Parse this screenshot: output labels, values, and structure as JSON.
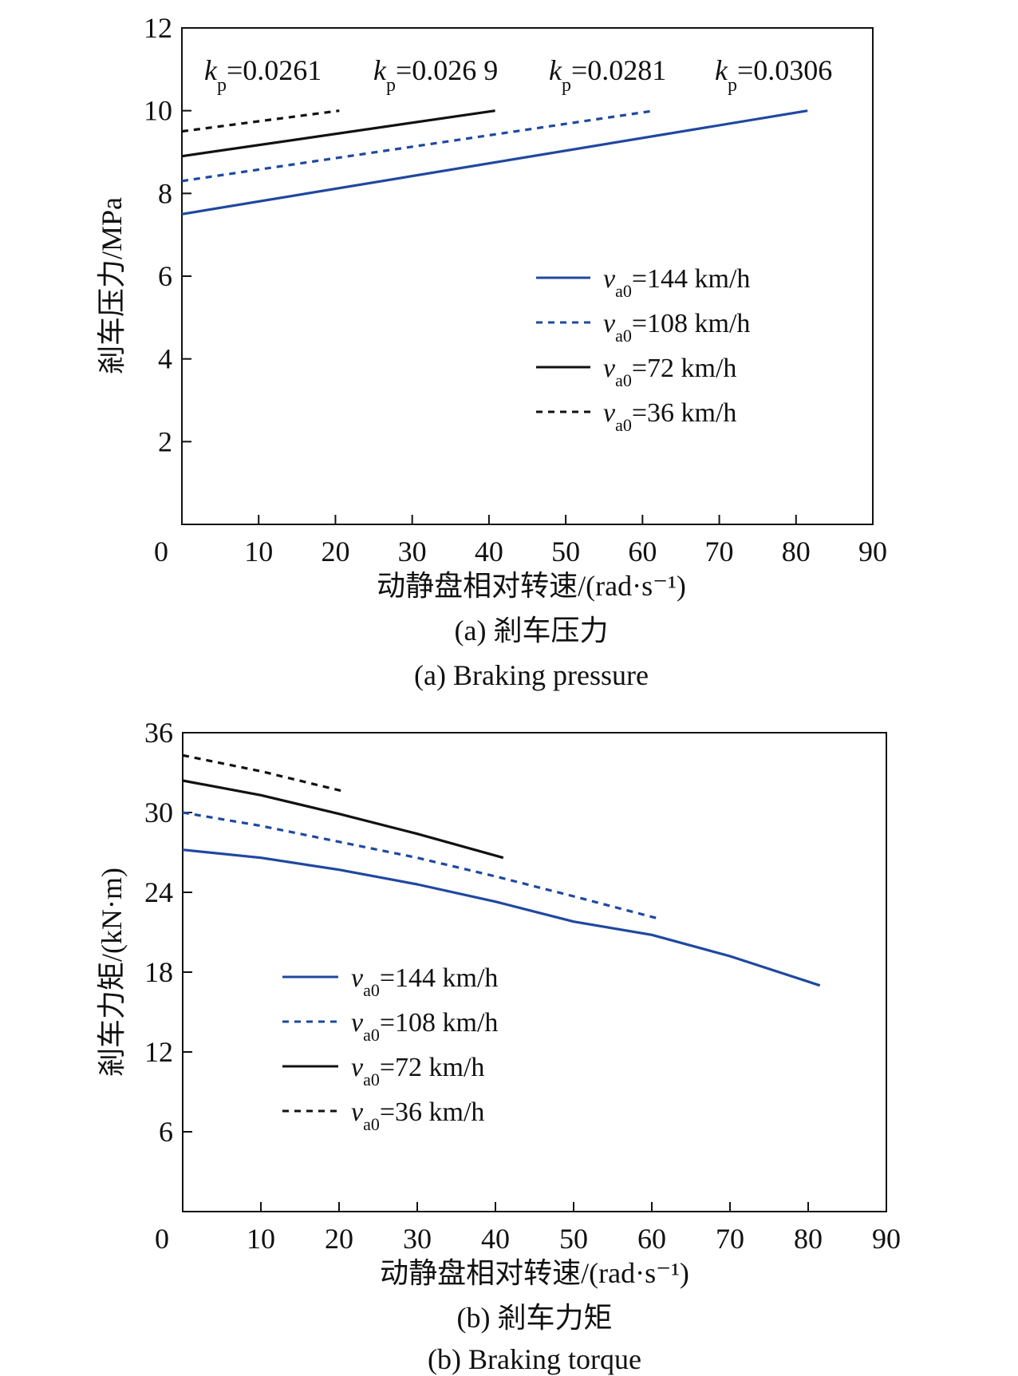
{
  "chart_data": [
    {
      "id": "a",
      "type": "line",
      "xlabel": "动静盘相对转速/(rad·s⁻¹)",
      "ylabel": "剎车压力/MPa",
      "caption_cn": "(a) 剎车压力",
      "caption_en": "(a) Braking pressure",
      "xlim": [
        0,
        90
      ],
      "ylim": [
        0,
        12
      ],
      "x_ticks": [
        "0",
        "10",
        "20",
        "30",
        "40",
        "50",
        "60",
        "70",
        "80",
        "90"
      ],
      "y_ticks": [
        "2",
        "4",
        "6",
        "8",
        "10",
        "12"
      ],
      "legend_position": "right-middle",
      "annotations": [
        {
          "label": "k",
          "sub": "p",
          "value": "=0.0261"
        },
        {
          "label": "k",
          "sub": "p",
          "value": "=0.026 9"
        },
        {
          "label": "k",
          "sub": "p",
          "value": "=0.0281"
        },
        {
          "label": "k",
          "sub": "p",
          "value": "=0.0306"
        }
      ],
      "series": [
        {
          "name": "va0=144 km/h",
          "legend_main": "v",
          "legend_sub": "a0",
          "legend_rest": "=144 km/h",
          "color": "#1f48a0",
          "dash": "solid",
          "x": [
            0,
            81.5
          ],
          "y": [
            7.5,
            10.0
          ]
        },
        {
          "name": "va0=108 km/h",
          "legend_main": "v",
          "legend_sub": "a0",
          "legend_rest": "=108 km/h",
          "color": "#1f48a0",
          "dash": "dashed",
          "x": [
            0,
            61.5
          ],
          "y": [
            8.3,
            10.0
          ]
        },
        {
          "name": "va0=72 km/h",
          "legend_main": "v",
          "legend_sub": "a0",
          "legend_rest": "=72 km/h",
          "color": "#111111",
          "dash": "solid",
          "x": [
            0,
            40.8
          ],
          "y": [
            8.9,
            10.0
          ]
        },
        {
          "name": "va0=36 km/h",
          "legend_main": "v",
          "legend_sub": "a0",
          "legend_rest": "=36 km/h",
          "color": "#111111",
          "dash": "dashed",
          "x": [
            0,
            20.5
          ],
          "y": [
            9.5,
            10.0
          ]
        }
      ]
    },
    {
      "id": "b",
      "type": "line",
      "xlabel": "动静盘相对转速/(rad·s⁻¹)",
      "ylabel": "剎车力矩/(kN·m)",
      "caption_cn": "(b) 剎车力矩",
      "caption_en": "(b) Braking torque",
      "xlim": [
        0,
        90
      ],
      "ylim": [
        0,
        36
      ],
      "x_ticks": [
        "0",
        "10",
        "20",
        "30",
        "40",
        "50",
        "60",
        "70",
        "80",
        "90"
      ],
      "y_ticks": [
        "6",
        "12",
        "18",
        "24",
        "30",
        "36"
      ],
      "legend_position": "left-middle",
      "series": [
        {
          "name": "va0=144 km/h",
          "legend_main": "v",
          "legend_sub": "a0",
          "legend_rest": "=144 km/h",
          "color": "#1f48a0",
          "dash": "solid",
          "x": [
            0,
            10,
            20,
            30,
            40,
            50,
            60,
            70,
            81.5
          ],
          "y": [
            27.2,
            26.6,
            25.7,
            24.6,
            23.3,
            21.8,
            20.8,
            19.2,
            17.0
          ]
        },
        {
          "name": "va0=108 km/h",
          "legend_main": "v",
          "legend_sub": "a0",
          "legend_rest": "=108 km/h",
          "color": "#1f48a0",
          "dash": "dashed",
          "x": [
            0,
            10,
            20,
            30,
            40,
            50,
            61
          ],
          "y": [
            30.0,
            29.0,
            27.8,
            26.6,
            25.2,
            23.7,
            22.0
          ]
        },
        {
          "name": "va0=72 km/h",
          "legend_main": "v",
          "legend_sub": "a0",
          "legend_rest": "=72 km/h",
          "color": "#111111",
          "dash": "solid",
          "x": [
            0,
            10,
            20,
            30,
            41
          ],
          "y": [
            32.4,
            31.3,
            29.9,
            28.4,
            26.6
          ]
        },
        {
          "name": "va0=36 km/h",
          "legend_main": "v",
          "legend_sub": "a0",
          "legend_rest": "=36 km/h",
          "color": "#111111",
          "dash": "dashed",
          "x": [
            0,
            10,
            20.5
          ],
          "y": [
            34.3,
            33.1,
            31.6
          ]
        }
      ]
    }
  ]
}
